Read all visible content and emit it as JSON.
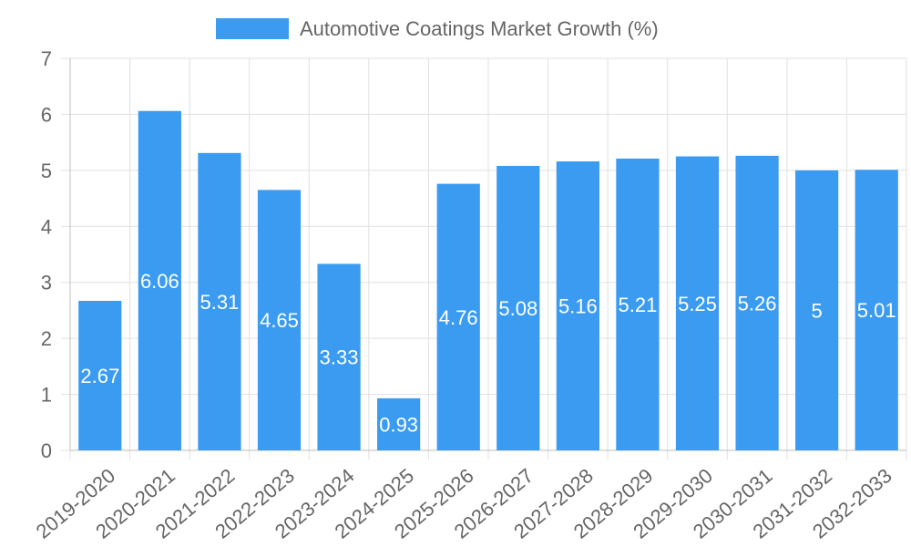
{
  "chart_data": {
    "type": "bar",
    "legend": {
      "label": "Automotive Coatings Market Growth (%)",
      "position": "top"
    },
    "categories": [
      "2019-2020",
      "2020-2021",
      "2021-2022",
      "2022-2023",
      "2023-2024",
      "2024-2025",
      "2025-2026",
      "2026-2027",
      "2027-2028",
      "2028-2029",
      "2029-2030",
      "2030-2031",
      "2031-2032",
      "2032-2033"
    ],
    "values": [
      2.67,
      6.06,
      5.31,
      4.65,
      3.33,
      0.93,
      4.76,
      5.08,
      5.16,
      5.21,
      5.25,
      5.26,
      5,
      5.01
    ],
    "value_labels": [
      "2.67",
      "6.06",
      "5.31",
      "4.65",
      "3.33",
      "0.93",
      "4.76",
      "5.08",
      "5.16",
      "5.21",
      "5.25",
      "5.26",
      "5",
      "5.01"
    ],
    "y_ticks": [
      "0",
      "1",
      "2",
      "3",
      "4",
      "5",
      "6",
      "7"
    ],
    "ylim": [
      0,
      7
    ],
    "grid": true,
    "colors": {
      "bar": "#3a9bf0",
      "grid": "#e0e0e0",
      "text": "#666666",
      "value_text": "#ffffff"
    }
  }
}
